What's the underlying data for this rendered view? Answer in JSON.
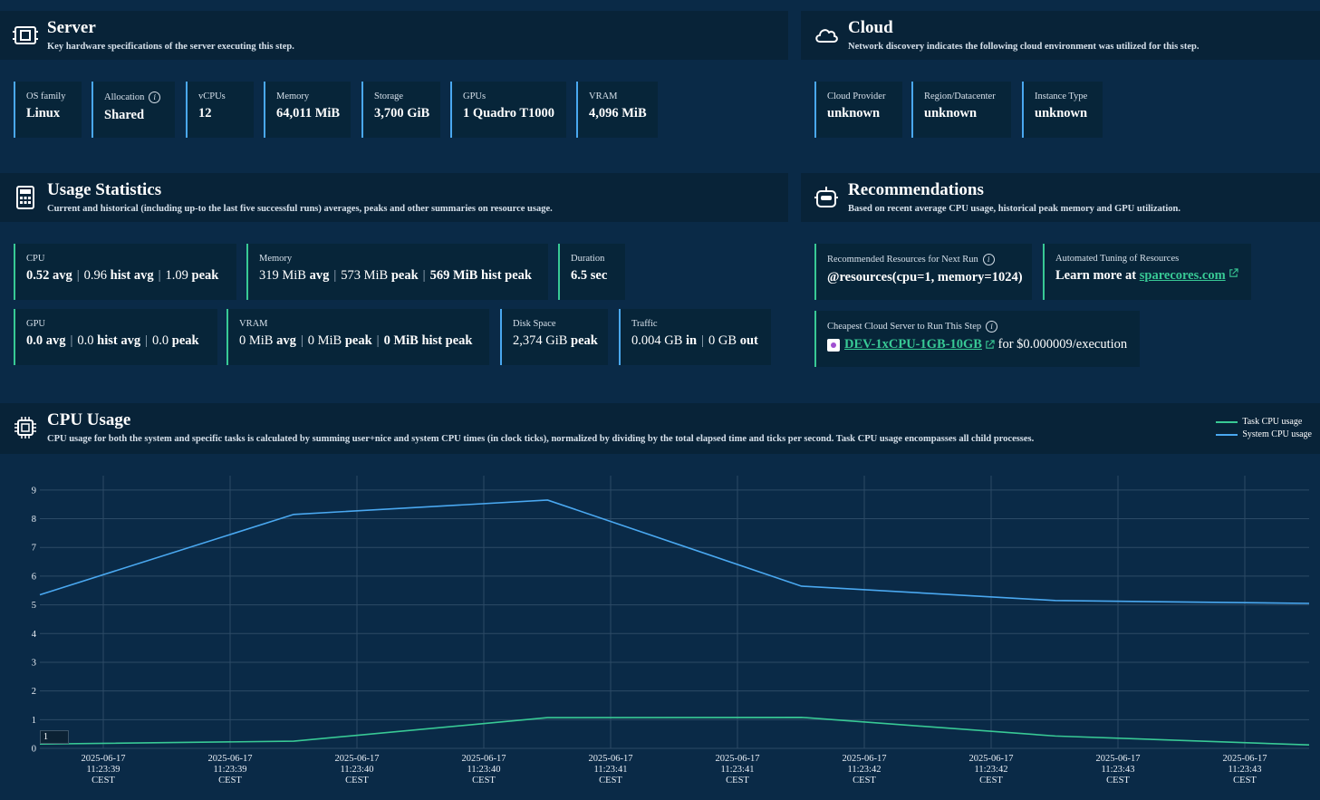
{
  "server": {
    "title": "Server",
    "subtitle": "Key hardware specifications of the server executing this step.",
    "icon": "cpu-board-icon",
    "cards": [
      {
        "label": "OS family",
        "value": "Linux"
      },
      {
        "label": "Allocation",
        "value": "Shared"
      },
      {
        "label": "vCPUs",
        "value": "12"
      },
      {
        "label": "Memory",
        "value": "64,011 MiB"
      },
      {
        "label": "Storage",
        "value": "3,700 GiB"
      },
      {
        "label": "GPUs",
        "value": "1 Quadro T1000"
      },
      {
        "label": "VRAM",
        "value": "4,096 MiB"
      }
    ]
  },
  "cloud": {
    "title": "Cloud",
    "subtitle": "Network discovery indicates the following cloud environment was utilized for this step.",
    "icon": "cloud-icon",
    "cards": [
      {
        "label": "Cloud Provider",
        "value": "unknown"
      },
      {
        "label": "Region/Datacenter",
        "value": "unknown"
      },
      {
        "label": "Instance Type",
        "value": "unknown"
      }
    ]
  },
  "usage": {
    "title": "Usage Statistics",
    "subtitle": "Current and historical (including up-to the last five successful runs) averages, peaks and other summaries on resource usage.",
    "icon": "calculator-icon",
    "cpu": {
      "label": "CPU",
      "v1": "0.52",
      "w1": "avg",
      "v2": "0.96",
      "w2": "hist avg",
      "v3": "1.09",
      "w3": "peak"
    },
    "memory": {
      "label": "Memory",
      "v1": "319 MiB",
      "w1": "avg",
      "v2": "573 MiB",
      "w2": "peak",
      "v3": "569 MiB hist peak"
    },
    "duration": {
      "label": "Duration",
      "value": "6.5 sec"
    },
    "gpu": {
      "label": "GPU",
      "v1": "0.0",
      "w1": "avg",
      "v2": "0.0",
      "w2": "hist avg",
      "v3": "0.0",
      "w3": "peak"
    },
    "vram": {
      "label": "VRAM",
      "v1": "0 MiB",
      "w1": "avg",
      "v2": "0 MiB",
      "w2": "peak",
      "v3": "0 MiB hist peak"
    },
    "disk": {
      "label": "Disk Space",
      "v1": "2,374 GiB",
      "w1": "peak"
    },
    "traffic": {
      "label": "Traffic",
      "v1": "0.004 GB",
      "w1": "in",
      "v2": "0 GB",
      "w2": "out"
    }
  },
  "recommendations": {
    "title": "Recommendations",
    "subtitle": "Based on recent average CPU usage, historical peak memory and GPU utilization.",
    "icon": "robot-icon",
    "next_run": {
      "label": "Recommended Resources for Next Run",
      "value": "@resources(cpu=1, memory=1024)"
    },
    "tuning": {
      "label": "Automated Tuning of Resources",
      "prefix": "Learn more at ",
      "link": "sparecores.com"
    },
    "cheapest": {
      "label": "Cheapest Cloud Server to Run This Step",
      "link": "DEV-1xCPU-1GB-10GB",
      "suffix": " for $0.000009/execution"
    }
  },
  "cpu_usage": {
    "title": "CPU Usage",
    "subtitle": "CPU usage for both the system and specific tasks is calculated by summing user+nice and system CPU times (in clock ticks), normalized by dividing by the total elapsed time and ticks per second. Task CPU usage encompasses all child processes.",
    "icon": "chip-icon",
    "pager_value": "1"
  },
  "chart_data": {
    "type": "line",
    "x": [
      "2025-06-17 11:23:38.9",
      "2025-06-17 11:23:39.9",
      "2025-06-17 11:23:40.9",
      "2025-06-17 11:23:41.9",
      "2025-06-17 11:23:42.9",
      "2025-06-17 11:23:43.9"
    ],
    "series": [
      {
        "name": "Task CPU usage",
        "color": "#38c995",
        "values": [
          0.15,
          0.25,
          1.07,
          1.08,
          0.43,
          0.12
        ]
      },
      {
        "name": "System CPU usage",
        "color": "#4aa8f0",
        "values": [
          5.35,
          8.15,
          8.65,
          5.65,
          5.15,
          5.05
        ]
      }
    ],
    "x_tick_labels": [
      [
        "2025-06-17",
        "11:23:39",
        "CEST"
      ],
      [
        "2025-06-17",
        "11:23:39",
        "CEST"
      ],
      [
        "2025-06-17",
        "11:23:40",
        "CEST"
      ],
      [
        "2025-06-17",
        "11:23:40",
        "CEST"
      ],
      [
        "2025-06-17",
        "11:23:41",
        "CEST"
      ],
      [
        "2025-06-17",
        "11:23:41",
        "CEST"
      ],
      [
        "2025-06-17",
        "11:23:42",
        "CEST"
      ],
      [
        "2025-06-17",
        "11:23:42",
        "CEST"
      ],
      [
        "2025-06-17",
        "11:23:43",
        "CEST"
      ],
      [
        "2025-06-17",
        "11:23:43",
        "CEST"
      ]
    ],
    "y_ticks": [
      0,
      1,
      2,
      3,
      4,
      5,
      6,
      7,
      8,
      9
    ],
    "ylim": [
      0,
      9.5
    ],
    "grid": true,
    "legend": "top-right"
  }
}
